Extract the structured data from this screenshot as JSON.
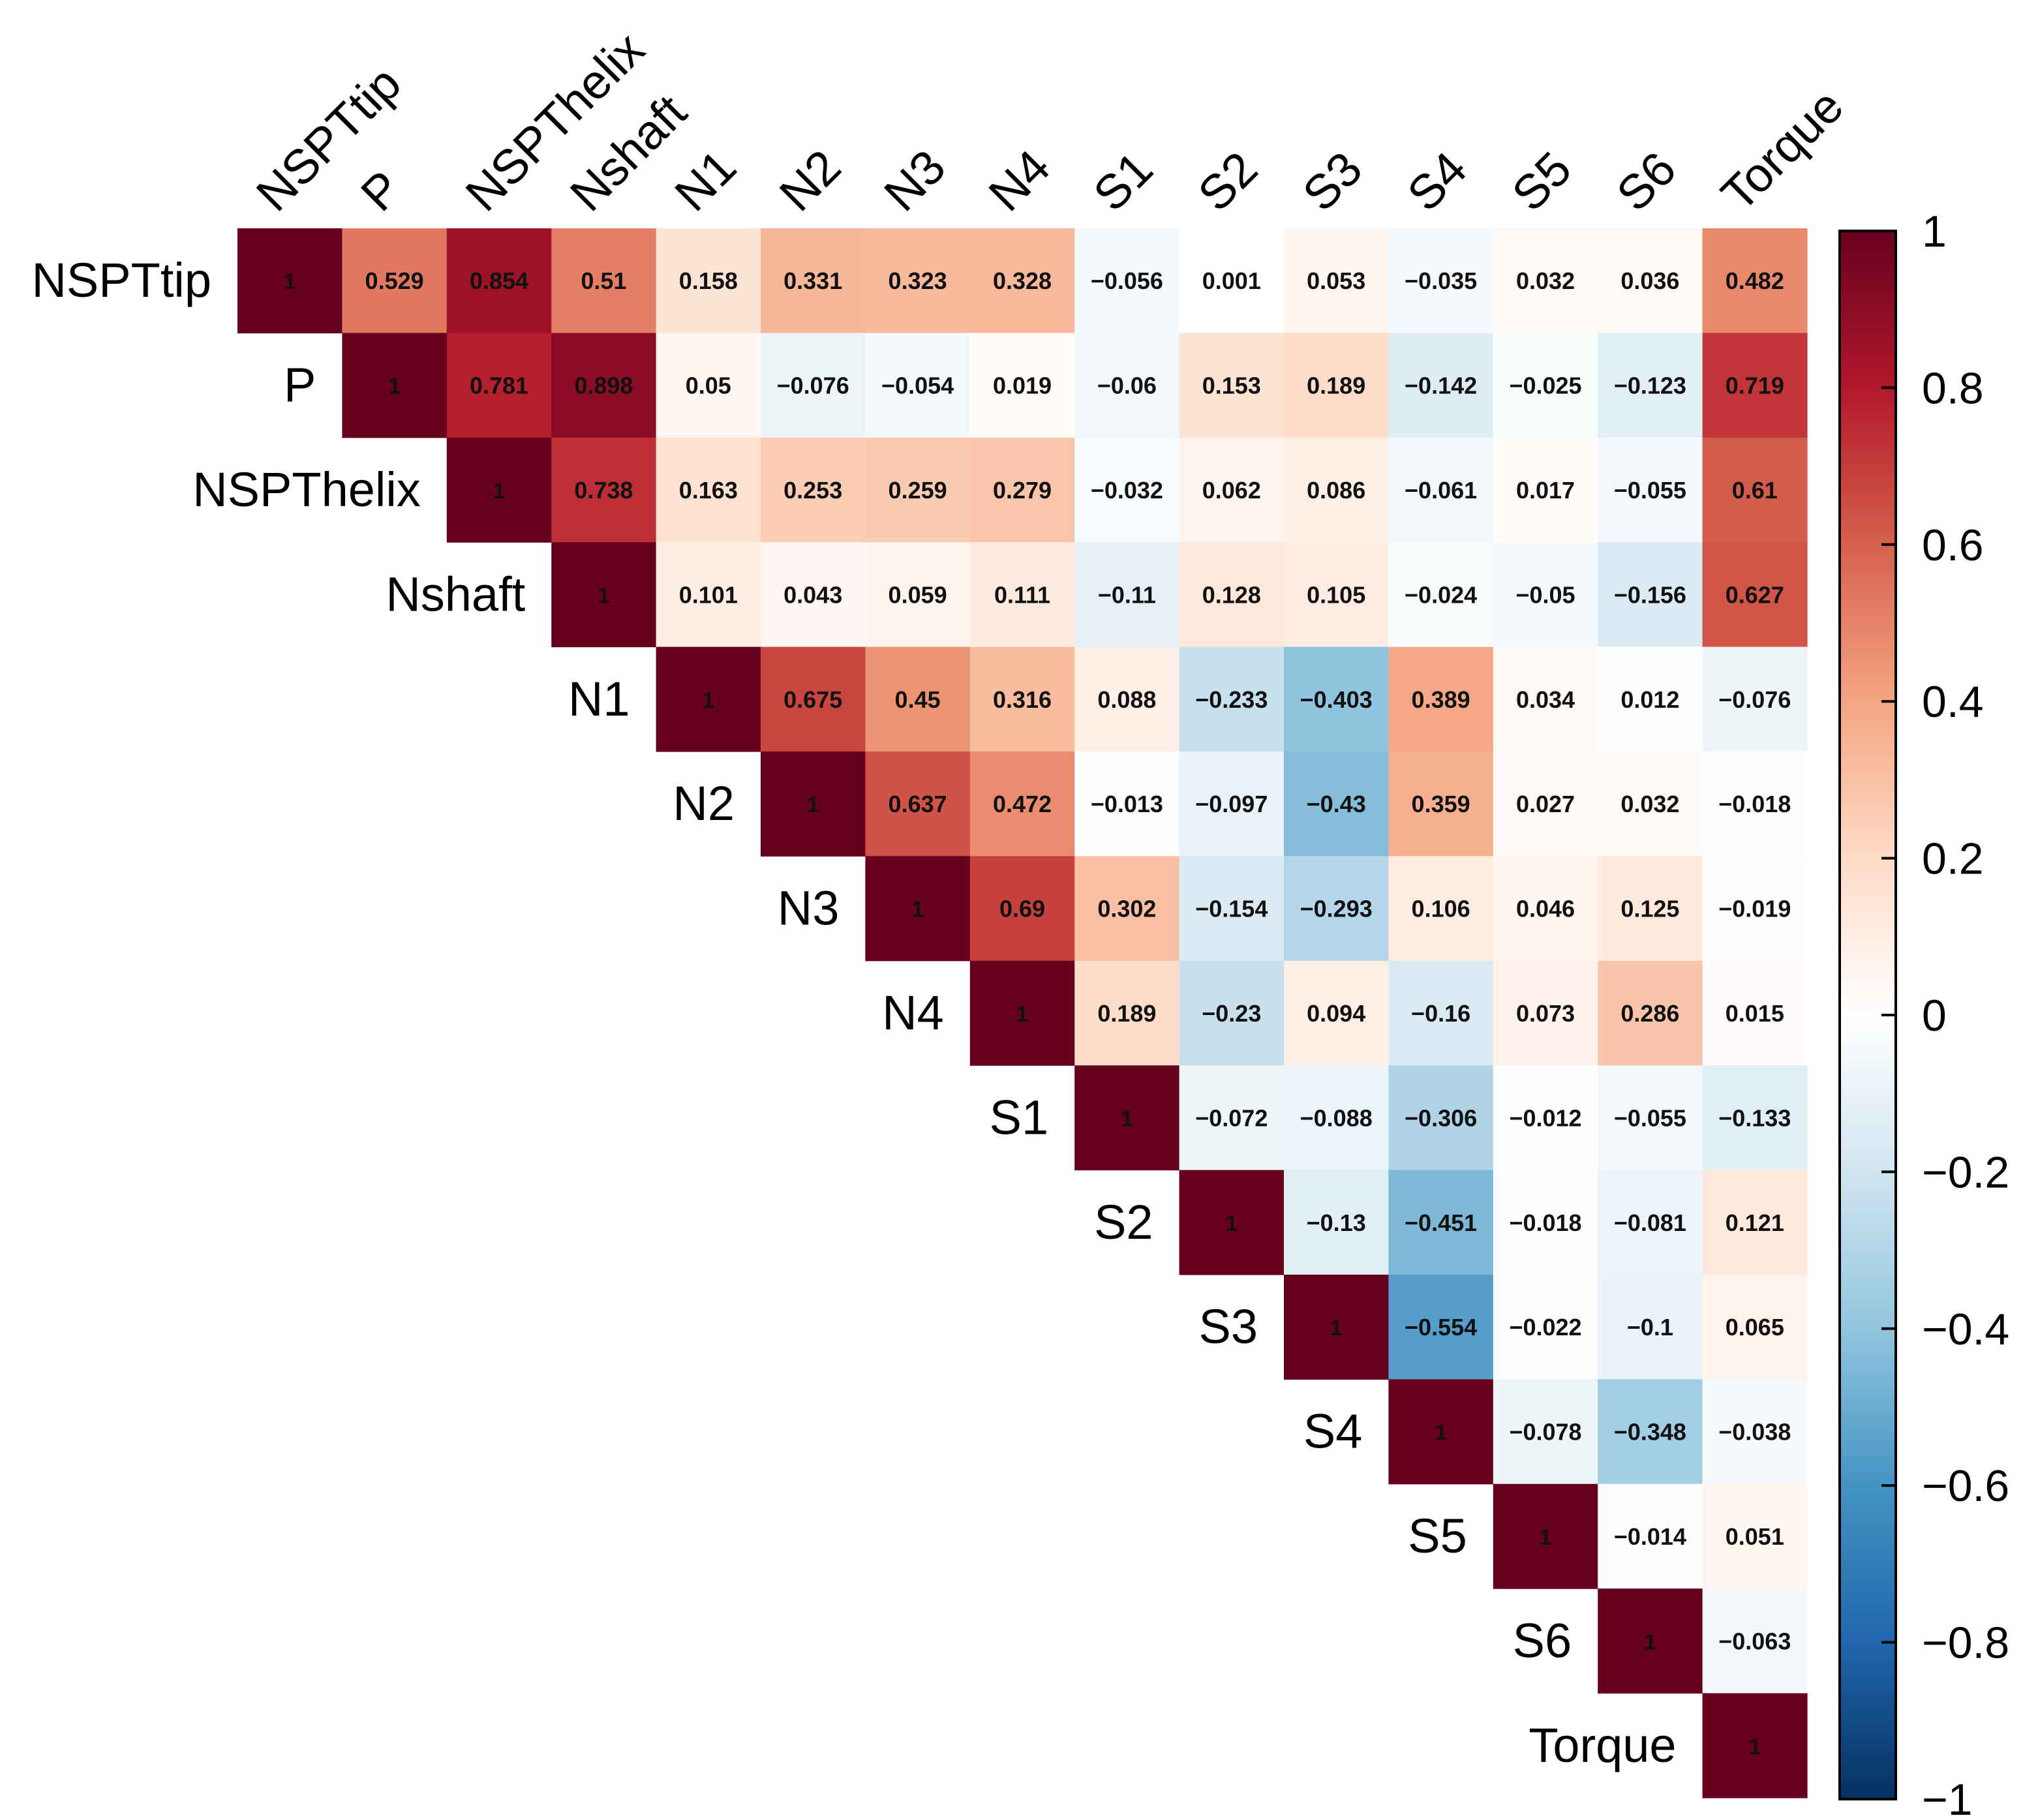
{
  "chart_data": {
    "type": "heatmap",
    "variables": [
      "NSPTtip",
      "P",
      "NSPThelix",
      "Nshaft",
      "N1",
      "N2",
      "N3",
      "N4",
      "S1",
      "S2",
      "S3",
      "S4",
      "S5",
      "S6",
      "Torque"
    ],
    "matrix_upper": [
      [
        "1",
        "0.529",
        "0.854",
        "0.51",
        "0.158",
        "0.331",
        "0.323",
        "0.328",
        "−0.056",
        "0.001",
        "0.053",
        "−0.035",
        "0.032",
        "0.036",
        "0.482"
      ],
      [
        "1",
        "0.781",
        "0.898",
        "0.05",
        "−0.076",
        "−0.054",
        "0.019",
        "−0.06",
        "0.153",
        "0.189",
        "−0.142",
        "−0.025",
        "−0.123",
        "0.719"
      ],
      [
        "1",
        "0.738",
        "0.163",
        "0.253",
        "0.259",
        "0.279",
        "−0.032",
        "0.062",
        "0.086",
        "−0.061",
        "0.017",
        "−0.055",
        "0.61"
      ],
      [
        "1",
        "0.101",
        "0.043",
        "0.059",
        "0.111",
        "−0.11",
        "0.128",
        "0.105",
        "−0.024",
        "−0.05",
        "−0.156",
        "0.627"
      ],
      [
        "1",
        "0.675",
        "0.45",
        "0.316",
        "0.088",
        "−0.233",
        "−0.403",
        "0.389",
        "0.034",
        "0.012",
        "−0.076"
      ],
      [
        "1",
        "0.637",
        "0.472",
        "−0.013",
        "−0.097",
        "−0.43",
        "0.359",
        "0.027",
        "0.032",
        "−0.018"
      ],
      [
        "1",
        "0.69",
        "0.302",
        "−0.154",
        "−0.293",
        "0.106",
        "0.046",
        "0.125",
        "−0.019"
      ],
      [
        "1",
        "0.189",
        "−0.23",
        "0.094",
        "−0.16",
        "0.073",
        "0.286",
        "0.015"
      ],
      [
        "1",
        "−0.072",
        "−0.088",
        "−0.306",
        "−0.012",
        "−0.055",
        "−0.133"
      ],
      [
        "1",
        "−0.13",
        "−0.451",
        "−0.018",
        "−0.081",
        "0.121"
      ],
      [
        "1",
        "−0.554",
        "−0.022",
        "−0.1",
        "0.065"
      ],
      [
        "1",
        "−0.078",
        "−0.348",
        "−0.038"
      ],
      [
        "1",
        "−0.014",
        "0.051"
      ],
      [
        "1",
        "−0.063"
      ],
      [
        "1"
      ]
    ],
    "colorbar": {
      "range": [
        -1,
        1
      ],
      "tick_labels": [
        "1",
        "0.8",
        "0.6",
        "0.4",
        "0.2",
        "0",
        "−0.2",
        "−0.4",
        "−0.6",
        "−0.8",
        "−1"
      ],
      "colors": [
        "#67001F",
        "#B2182B",
        "#D6604D",
        "#F4A582",
        "#FDDBC7",
        "#FFFFFF",
        "#D1E5F0",
        "#92C5DE",
        "#4393C3",
        "#2166AC",
        "#053061"
      ]
    }
  }
}
